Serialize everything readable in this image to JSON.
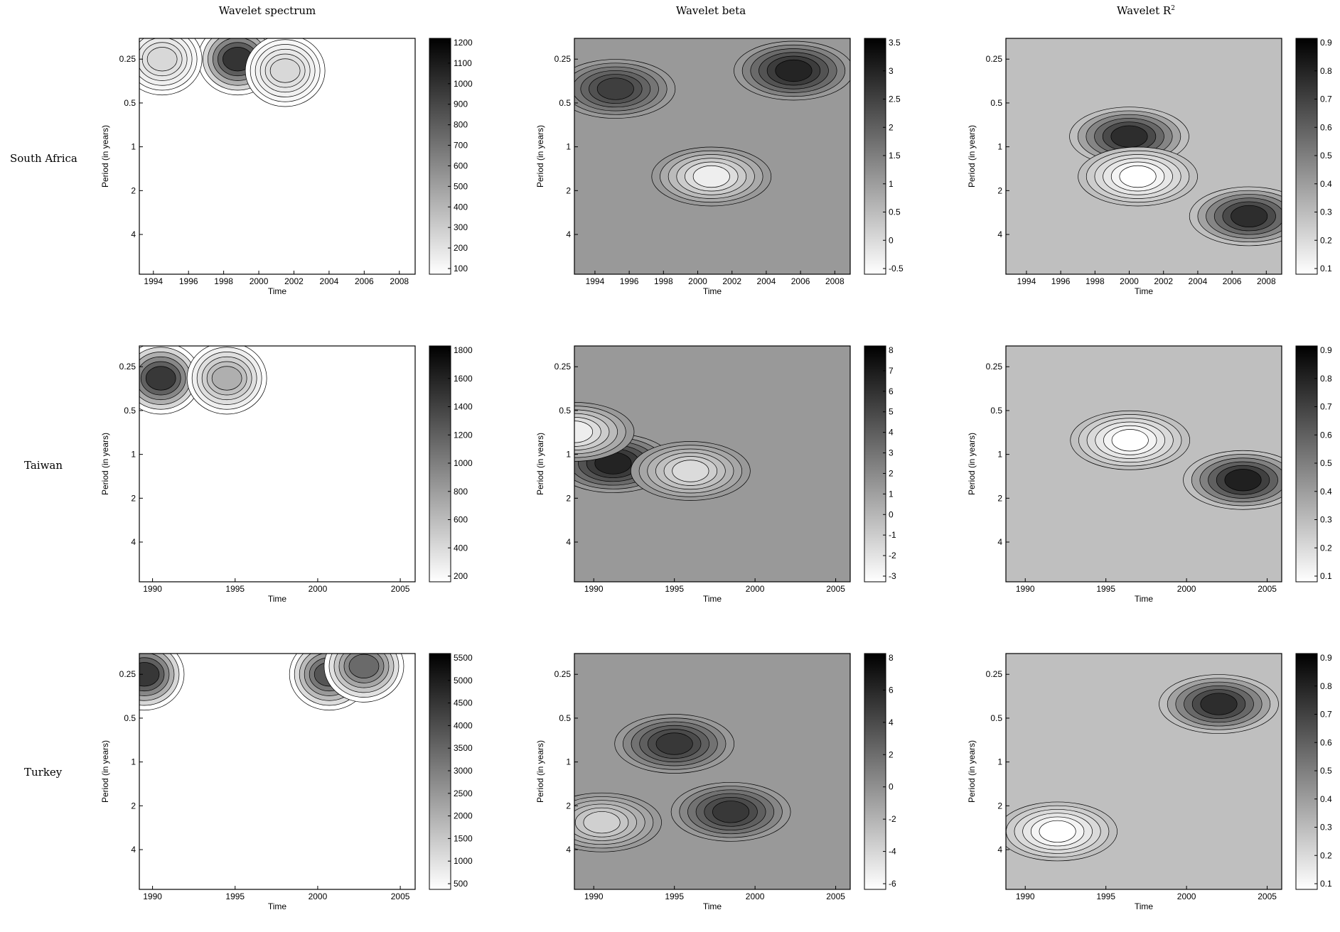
{
  "column_titles": [
    "Wavelet spectrum",
    "Wavelet beta",
    "Wavelet R",
    "2"
  ],
  "row_titles": [
    "South Africa",
    "Taiwan",
    "Turkey"
  ],
  "chart_data": [
    {
      "type": "heatmap",
      "title": "Wavelet spectrum",
      "row": "South Africa",
      "xlabel": "Time",
      "ylabel": "Period (in years)",
      "xticks": [
        "1994",
        "1996",
        "1998",
        "2000",
        "2002",
        "2004",
        "2006",
        "2008"
      ],
      "yticks": [
        "0.25",
        "0.5",
        "1",
        "2",
        "4"
      ],
      "colorbar_ticks": [
        "100",
        "200",
        "300",
        "400",
        "500",
        "600",
        "700",
        "800",
        "900",
        "1000",
        "1100",
        "1200"
      ],
      "colormap": "grayscale (white = low, black = high)",
      "peaks": [
        {
          "x": 1998.8,
          "y": 0.25,
          "value": 1150
        },
        {
          "x": 1994.5,
          "y": 0.25,
          "value": 300
        },
        {
          "x": 2001.5,
          "y": 0.3,
          "value": 300
        }
      ]
    },
    {
      "type": "heatmap",
      "title": "Wavelet beta",
      "row": "South Africa",
      "xlabel": "Time",
      "ylabel": "Period (in years)",
      "xticks": [
        "1994",
        "1996",
        "1998",
        "2000",
        "2002",
        "2004",
        "2006",
        "2008"
      ],
      "yticks": [
        "0.25",
        "0.5",
        "1",
        "2",
        "4"
      ],
      "colorbar_ticks": [
        "-0.5",
        "0",
        "0.5",
        "1",
        "1.5",
        "2",
        "2.5",
        "3",
        "3.5"
      ],
      "colormap": "grayscale (white = low, black = high)",
      "peaks": [
        {
          "x": 2005.6,
          "y": 0.3,
          "value": 3.3
        },
        {
          "x": 1995.2,
          "y": 0.4,
          "value": 2.8
        },
        {
          "x": 2000.8,
          "y": 1.6,
          "value": -0.5
        }
      ]
    },
    {
      "type": "heatmap",
      "title": "Wavelet R2",
      "row": "South Africa",
      "xlabel": "Time",
      "ylabel": "Period (in years)",
      "xticks": [
        "1994",
        "1996",
        "1998",
        "2000",
        "2002",
        "2004",
        "2006",
        "2008"
      ],
      "yticks": [
        "0.25",
        "0.5",
        "1",
        "2",
        "4"
      ],
      "colorbar_ticks": [
        "0.1",
        "0.2",
        "0.3",
        "0.4",
        "0.5",
        "0.6",
        "0.7",
        "0.8",
        "0.9"
      ],
      "colormap": "grayscale (white = low, black = high)",
      "peaks": [
        {
          "x": 2000,
          "y": 0.85,
          "value": 0.85
        },
        {
          "x": 2007,
          "y": 3.0,
          "value": 0.85
        },
        {
          "x": 2000.5,
          "y": 1.6,
          "value": 0.05
        }
      ]
    },
    {
      "type": "heatmap",
      "title": "Wavelet spectrum",
      "row": "Taiwan",
      "xlabel": "Time",
      "ylabel": "Period (in years)",
      "xticks": [
        "1990",
        "1995",
        "2000",
        "2005"
      ],
      "yticks": [
        "0.25",
        "0.5",
        "1",
        "2",
        "4"
      ],
      "colorbar_ticks": [
        "200",
        "400",
        "600",
        "800",
        "1000",
        "1200",
        "1400",
        "1600",
        "1800"
      ],
      "colormap": "grayscale (white = low, black = high)",
      "peaks": [
        {
          "x": 1990.5,
          "y": 0.3,
          "value": 1700
        },
        {
          "x": 1994.5,
          "y": 0.3,
          "value": 800
        }
      ]
    },
    {
      "type": "heatmap",
      "title": "Wavelet beta",
      "row": "Taiwan",
      "xlabel": "Time",
      "ylabel": "Period (in years)",
      "xticks": [
        "1990",
        "1995",
        "2000",
        "2005"
      ],
      "yticks": [
        "0.25",
        "0.5",
        "1",
        "2",
        "4"
      ],
      "colorbar_ticks": [
        "-3",
        "-2",
        "-1",
        "0",
        "1",
        "2",
        "3",
        "4",
        "5",
        "6",
        "7",
        "8"
      ],
      "colormap": "grayscale (white = low, black = high)",
      "peaks": [
        {
          "x": 1991.2,
          "y": 1.15,
          "value": 7.5
        },
        {
          "x": 1988.8,
          "y": 0.7,
          "value": -3
        },
        {
          "x": 1996,
          "y": 1.3,
          "value": -2
        }
      ]
    },
    {
      "type": "heatmap",
      "title": "Wavelet R2",
      "row": "Taiwan",
      "xlabel": "Time",
      "ylabel": "Period (in years)",
      "xticks": [
        "1990",
        "1995",
        "2000",
        "2005"
      ],
      "yticks": [
        "0.25",
        "0.5",
        "1",
        "2",
        "4"
      ],
      "colorbar_ticks": [
        "0.1",
        "0.2",
        "0.3",
        "0.4",
        "0.5",
        "0.6",
        "0.7",
        "0.8",
        "0.9"
      ],
      "colormap": "grayscale (white = low, black = high)",
      "peaks": [
        {
          "x": 2003.5,
          "y": 1.5,
          "value": 0.9
        },
        {
          "x": 1996.5,
          "y": 0.8,
          "value": 0.05
        }
      ]
    },
    {
      "type": "heatmap",
      "title": "Wavelet spectrum",
      "row": "Turkey",
      "xlabel": "Time",
      "ylabel": "Period (in years)",
      "xticks": [
        "1990",
        "1995",
        "2000",
        "2005"
      ],
      "yticks": [
        "0.25",
        "0.5",
        "1",
        "2",
        "4"
      ],
      "colorbar_ticks": [
        "500",
        "1000",
        "1500",
        "2000",
        "2500",
        "3000",
        "3500",
        "4000",
        "4500",
        "5000",
        "5500"
      ],
      "colormap": "grayscale (white = low, black = high)",
      "peaks": [
        {
          "x": 1989.5,
          "y": 0.25,
          "value": 5200
        },
        {
          "x": 2000.7,
          "y": 0.25,
          "value": 4500
        },
        {
          "x": 2002.8,
          "y": 0.22,
          "value": 4000
        }
      ]
    },
    {
      "type": "heatmap",
      "title": "Wavelet beta",
      "row": "Turkey",
      "xlabel": "Time",
      "ylabel": "Period (in years)",
      "xticks": [
        "1990",
        "1995",
        "2000",
        "2005"
      ],
      "yticks": [
        "0.25",
        "0.5",
        "1",
        "2",
        "4"
      ],
      "colorbar_ticks": [
        "-6",
        "-4",
        "-2",
        "0",
        "2",
        "4",
        "6",
        "8"
      ],
      "colormap": "grayscale (white = low, black = high)",
      "peaks": [
        {
          "x": 1995,
          "y": 0.75,
          "value": 6
        },
        {
          "x": 1998.5,
          "y": 2.2,
          "value": 6
        },
        {
          "x": 1990.5,
          "y": 2.6,
          "value": -4
        }
      ]
    },
    {
      "type": "heatmap",
      "title": "Wavelet R2",
      "row": "Turkey",
      "xlabel": "Time",
      "ylabel": "Period (in years)",
      "xticks": [
        "1990",
        "1995",
        "2000",
        "2005"
      ],
      "yticks": [
        "0.25",
        "0.5",
        "1",
        "2",
        "4"
      ],
      "colorbar_ticks": [
        "0.1",
        "0.2",
        "0.3",
        "0.4",
        "0.5",
        "0.6",
        "0.7",
        "0.8",
        "0.9"
      ],
      "colormap": "grayscale (white = low, black = high)",
      "peaks": [
        {
          "x": 2002,
          "y": 0.4,
          "value": 0.85
        },
        {
          "x": 1992,
          "y": 3.0,
          "value": 0.05
        }
      ]
    }
  ]
}
